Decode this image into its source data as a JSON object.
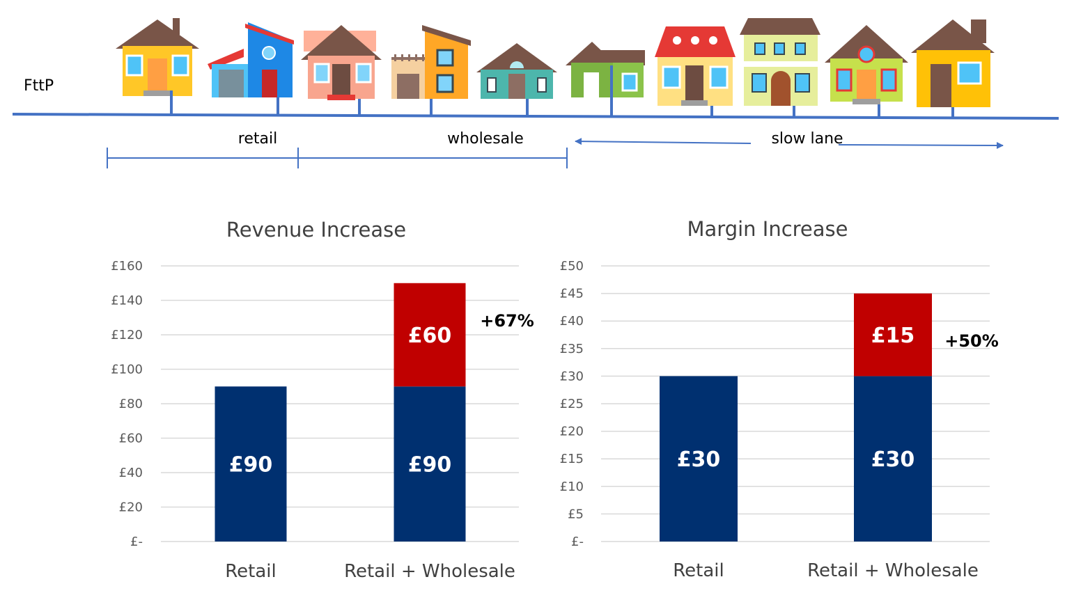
{
  "diagram": {
    "fttp_label": "FttP",
    "retail_label": "retail",
    "wholesale_label": "wholesale",
    "slow_lane_label": "slow lane",
    "line_color": "#4472C4"
  },
  "colors": {
    "base": "#003070",
    "increment": "#C00000",
    "grid": "#D9D9D9"
  },
  "chart_data": [
    {
      "type": "bar",
      "stacked": true,
      "title": "Revenue Increase",
      "categories": [
        "Retail",
        "Retail + Wholesale"
      ],
      "series": [
        {
          "values": [
            90,
            90
          ],
          "labels": [
            "£90",
            "£90"
          ]
        },
        {
          "values": [
            0,
            60
          ],
          "labels": [
            "",
            "£60"
          ]
        }
      ],
      "annotation": "+67%",
      "ylim": [
        0,
        160
      ],
      "yticks": [
        0,
        20,
        40,
        60,
        80,
        100,
        120,
        140,
        160
      ],
      "ytick_labels": [
        "£-",
        "£20",
        "£40",
        "£60",
        "£80",
        "£100",
        "£120",
        "£140",
        "£160"
      ],
      "grid": true
    },
    {
      "type": "bar",
      "stacked": true,
      "title": "Margin Increase",
      "categories": [
        "Retail",
        "Retail + Wholesale"
      ],
      "series": [
        {
          "values": [
            30,
            30
          ],
          "labels": [
            "£30",
            "£30"
          ]
        },
        {
          "values": [
            0,
            15
          ],
          "labels": [
            "",
            "£15"
          ]
        }
      ],
      "annotation": "+50%",
      "ylim": [
        0,
        50
      ],
      "yticks": [
        0,
        5,
        10,
        15,
        20,
        25,
        30,
        35,
        40,
        45,
        50
      ],
      "ytick_labels": [
        "£-",
        "£5",
        "£10",
        "£15",
        "£20",
        "£25",
        "£30",
        "£35",
        "£40",
        "£45",
        "£50"
      ],
      "grid": true
    }
  ]
}
